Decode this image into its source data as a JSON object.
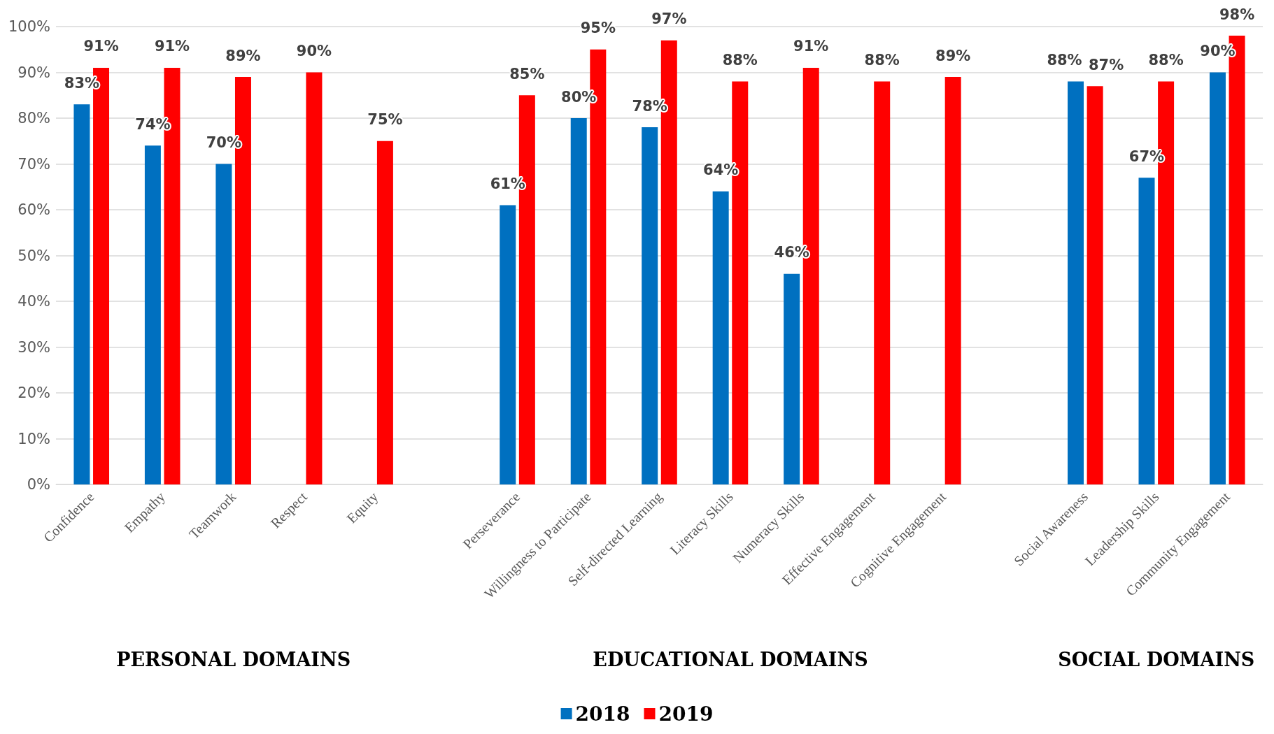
{
  "chart_data": {
    "type": "bar",
    "categories": [
      "Confidence",
      "Empathy",
      "Teamwork",
      "Respect",
      "Equity",
      null,
      "Perseverance",
      "Willingness to Participate",
      "Self-directed Learning",
      "Literacy Skills",
      "Numeracy Skills",
      "Effective Engagement",
      "Cognitive Engagement",
      null,
      "Social Awareness",
      "Leadership Skills",
      "Community Engagement"
    ],
    "series": [
      {
        "name": "2018",
        "color": "#0070c0",
        "values": [
          83,
          74,
          70,
          null,
          null,
          null,
          61,
          80,
          78,
          64,
          46,
          null,
          null,
          null,
          88,
          67,
          90
        ],
        "value_labels": [
          "83%",
          "74%",
          "70%",
          null,
          null,
          null,
          "61%",
          "80%",
          "78%",
          "64%",
          "46%",
          null,
          null,
          null,
          "88%",
          "67%",
          "90%"
        ]
      },
      {
        "name": "2019",
        "color": "#ff0000",
        "values": [
          91,
          91,
          89,
          90,
          75,
          null,
          85,
          95,
          97,
          88,
          91,
          88,
          89,
          null,
          87,
          88,
          98
        ],
        "value_labels": [
          "91%",
          "91%",
          "89%",
          "90%",
          "75%",
          null,
          "85%",
          "95%",
          "97%",
          "88%",
          "91%",
          "88%",
          "89%",
          null,
          "87%",
          "88%",
          "98%"
        ]
      }
    ],
    "ylim": [
      0,
      100
    ],
    "yticks": [
      {
        "value": 0,
        "label": "0%"
      },
      {
        "value": 10,
        "label": "10%"
      },
      {
        "value": 20,
        "label": "20%"
      },
      {
        "value": 30,
        "label": "30%"
      },
      {
        "value": 40,
        "label": "40%"
      },
      {
        "value": 50,
        "label": "50%"
      },
      {
        "value": 60,
        "label": "60%"
      },
      {
        "value": 70,
        "label": "70%"
      },
      {
        "value": 80,
        "label": "80%"
      },
      {
        "value": 90,
        "label": "90%"
      },
      {
        "value": 100,
        "label": "100%"
      }
    ],
    "grid": "y",
    "legend": "bottom",
    "annotations": [
      "PERSONAL DOMAINS",
      "EDUCATIONAL DOMAINS",
      "SOCIAL DOMAINS"
    ]
  }
}
